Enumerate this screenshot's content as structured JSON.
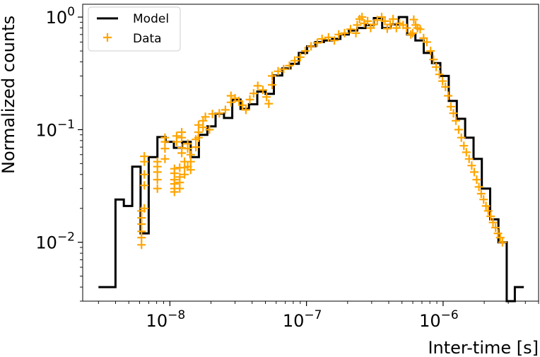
{
  "chart_data": {
    "type": "line",
    "xlabel": "Inter-time [s]",
    "ylabel": "Normalized counts",
    "xscale": "log",
    "yscale": "log",
    "xlim": [
      2.3e-09,
      5e-06
    ],
    "ylim": [
      0.003,
      1.3
    ],
    "x_ticks": [
      {
        "value": 1e-08,
        "base": "10",
        "exp": "−8"
      },
      {
        "value": 1e-07,
        "base": "10",
        "exp": "−7"
      },
      {
        "value": 1e-06,
        "base": "10",
        "exp": "−6"
      }
    ],
    "y_ticks": [
      {
        "value": 1,
        "base": "10",
        "exp": "0"
      },
      {
        "value": 0.1,
        "base": "10",
        "exp": "−1"
      },
      {
        "value": 0.01,
        "base": "10",
        "exp": "−2"
      }
    ],
    "legend": {
      "position": "top-left",
      "entries": [
        {
          "label": "Model",
          "style": "line"
        },
        {
          "label": "Data",
          "style": "plus"
        }
      ]
    },
    "colors": {
      "model": "#000000",
      "data": "#ffa500"
    },
    "series": [
      {
        "name": "Model",
        "kind": "step",
        "points": [
          [
            3e-09,
            0.004
          ],
          [
            4e-09,
            0.004
          ],
          [
            4e-09,
            0.024
          ],
          [
            4.6e-09,
            0.024
          ],
          [
            4.6e-09,
            0.021
          ],
          [
            5.3e-09,
            0.021
          ],
          [
            5.3e-09,
            0.047
          ],
          [
            6.1e-09,
            0.047
          ],
          [
            6.1e-09,
            0.012
          ],
          [
            7e-09,
            0.012
          ],
          [
            7e-09,
            0.057
          ],
          [
            8.1e-09,
            0.057
          ],
          [
            8.1e-09,
            0.086
          ],
          [
            9.3e-09,
            0.086
          ],
          [
            9.3e-09,
            0.078
          ],
          [
            1.07e-08,
            0.078
          ],
          [
            1.07e-08,
            0.069
          ],
          [
            1.23e-08,
            0.069
          ],
          [
            1.23e-08,
            0.078
          ],
          [
            1.42e-08,
            0.078
          ],
          [
            1.42e-08,
            0.057
          ],
          [
            1.63e-08,
            0.057
          ],
          [
            1.63e-08,
            0.09
          ],
          [
            1.88e-08,
            0.09
          ],
          [
            1.88e-08,
            0.107
          ],
          [
            2.16e-08,
            0.107
          ],
          [
            2.16e-08,
            0.139
          ],
          [
            2.49e-08,
            0.139
          ],
          [
            2.49e-08,
            0.127
          ],
          [
            2.86e-08,
            0.127
          ],
          [
            2.86e-08,
            0.185
          ],
          [
            3.29e-08,
            0.185
          ],
          [
            3.29e-08,
            0.153
          ],
          [
            3.79e-08,
            0.153
          ],
          [
            3.79e-08,
            0.168
          ],
          [
            4.36e-08,
            0.168
          ],
          [
            4.36e-08,
            0.218
          ],
          [
            5.02e-08,
            0.218
          ],
          [
            5.02e-08,
            0.208
          ],
          [
            5.77e-08,
            0.208
          ],
          [
            5.77e-08,
            0.303
          ],
          [
            6.64e-08,
            0.303
          ],
          [
            6.64e-08,
            0.35
          ],
          [
            7.64e-08,
            0.35
          ],
          [
            7.64e-08,
            0.385
          ],
          [
            8.79e-08,
            0.385
          ],
          [
            8.79e-08,
            0.48
          ],
          [
            1.01e-07,
            0.48
          ],
          [
            1.01e-07,
            0.55
          ],
          [
            1.16e-07,
            0.55
          ],
          [
            1.16e-07,
            0.6
          ],
          [
            1.34e-07,
            0.6
          ],
          [
            1.34e-07,
            0.62
          ],
          [
            1.54e-07,
            0.62
          ],
          [
            1.54e-07,
            0.64
          ],
          [
            1.77e-07,
            0.64
          ],
          [
            1.77e-07,
            0.7
          ],
          [
            2.04e-07,
            0.7
          ],
          [
            2.04e-07,
            0.76
          ],
          [
            2.35e-07,
            0.76
          ],
          [
            2.35e-07,
            0.8
          ],
          [
            2.7e-07,
            0.8
          ],
          [
            2.7e-07,
            0.85
          ],
          [
            3.11e-07,
            0.85
          ],
          [
            3.11e-07,
            0.98
          ],
          [
            3.58e-07,
            0.98
          ],
          [
            3.58e-07,
            0.8
          ],
          [
            4.12e-07,
            0.8
          ],
          [
            4.12e-07,
            0.86
          ],
          [
            4.74e-07,
            0.86
          ],
          [
            4.74e-07,
            1.0
          ],
          [
            5.45e-07,
            1.0
          ],
          [
            5.45e-07,
            0.7
          ],
          [
            6.27e-07,
            0.7
          ],
          [
            6.27e-07,
            0.62
          ],
          [
            7.21e-07,
            0.62
          ],
          [
            7.21e-07,
            0.48
          ],
          [
            8.29e-07,
            0.48
          ],
          [
            8.29e-07,
            0.39
          ],
          [
            9.54e-07,
            0.39
          ],
          [
            9.54e-07,
            0.3
          ],
          [
            1.1e-06,
            0.3
          ],
          [
            1.1e-06,
            0.18
          ],
          [
            1.26e-06,
            0.18
          ],
          [
            1.26e-06,
            0.125
          ],
          [
            1.45e-06,
            0.125
          ],
          [
            1.45e-06,
            0.085
          ],
          [
            1.67e-06,
            0.085
          ],
          [
            1.67e-06,
            0.055
          ],
          [
            1.92e-06,
            0.055
          ],
          [
            1.92e-06,
            0.03
          ],
          [
            2.21e-06,
            0.03
          ],
          [
            2.21e-06,
            0.016
          ],
          [
            2.54e-06,
            0.016
          ],
          [
            2.54e-06,
            0.01
          ],
          [
            2.92e-06,
            0.01
          ],
          [
            2.92e-06,
            0.0025
          ],
          [
            3.35e-06,
            0.0025
          ],
          [
            3.35e-06,
            0.004
          ],
          [
            3.9e-06,
            0.004
          ]
        ]
      },
      {
        "name": "Data",
        "kind": "markers",
        "marker": "plus",
        "points": [
          [
            6.2e-09,
            0.0095
          ],
          [
            6.2e-09,
            0.011
          ],
          [
            6.2e-09,
            0.0125
          ],
          [
            6.2e-09,
            0.0145
          ],
          [
            6.2e-09,
            0.0165
          ],
          [
            6.2e-09,
            0.019
          ],
          [
            6.5e-09,
            0.02
          ],
          [
            6.5e-09,
            0.032
          ],
          [
            6.5e-09,
            0.04
          ],
          [
            6.5e-09,
            0.052
          ],
          [
            6.5e-09,
            0.058
          ],
          [
            8.1e-09,
            0.03
          ],
          [
            8.1e-09,
            0.036
          ],
          [
            8.1e-09,
            0.042
          ],
          [
            8.1e-09,
            0.047
          ],
          [
            8.1e-09,
            0.052
          ],
          [
            9.2e-09,
            0.055
          ],
          [
            9.2e-09,
            0.068
          ],
          [
            9.2e-09,
            0.078
          ],
          [
            9.2e-09,
            0.085
          ],
          [
            1.08e-08,
            0.028
          ],
          [
            1.08e-08,
            0.03
          ],
          [
            1.08e-08,
            0.033
          ],
          [
            1.08e-08,
            0.036
          ],
          [
            1.08e-08,
            0.041
          ],
          [
            1.08e-08,
            0.045
          ],
          [
            1.12e-08,
            0.078
          ],
          [
            1.12e-08,
            0.088
          ],
          [
            1.18e-08,
            0.03
          ],
          [
            1.18e-08,
            0.034
          ],
          [
            1.18e-08,
            0.038
          ],
          [
            1.18e-08,
            0.046
          ],
          [
            1.22e-08,
            0.062
          ],
          [
            1.22e-08,
            0.069
          ],
          [
            1.22e-08,
            0.085
          ],
          [
            1.22e-08,
            0.095
          ],
          [
            1.28e-08,
            0.04
          ],
          [
            1.28e-08,
            0.046
          ],
          [
            1.28e-08,
            0.052
          ],
          [
            1.35e-08,
            0.047
          ],
          [
            1.35e-08,
            0.068
          ],
          [
            1.35e-08,
            0.075
          ],
          [
            1.42e-08,
            0.044
          ],
          [
            1.42e-08,
            0.052
          ],
          [
            1.42e-08,
            0.06
          ],
          [
            1.55e-08,
            0.07
          ],
          [
            1.55e-08,
            0.082
          ],
          [
            1.62e-08,
            0.085
          ],
          [
            1.62e-08,
            0.095
          ],
          [
            1.62e-08,
            0.11
          ],
          [
            1.75e-08,
            0.105
          ],
          [
            1.75e-08,
            0.12
          ],
          [
            1.82e-08,
            0.13
          ],
          [
            1.95e-08,
            0.1
          ],
          [
            2.05e-08,
            0.138
          ],
          [
            2.3e-08,
            0.14
          ],
          [
            2.55e-08,
            0.15
          ],
          [
            2.8e-08,
            0.175
          ],
          [
            2.8e-08,
            0.2
          ],
          [
            3e-08,
            0.19
          ],
          [
            3.2e-08,
            0.18
          ],
          [
            3.4e-08,
            0.165
          ],
          [
            3.6e-08,
            0.15
          ],
          [
            3.85e-08,
            0.185
          ],
          [
            4.1e-08,
            0.21
          ],
          [
            4.4e-08,
            0.245
          ],
          [
            4.8e-08,
            0.225
          ],
          [
            5.1e-08,
            0.195
          ],
          [
            5.3e-08,
            0.17
          ],
          [
            5.6e-08,
            0.25
          ],
          [
            5.6e-08,
            0.3
          ],
          [
            6.2e-08,
            0.33
          ],
          [
            6.8e-08,
            0.345
          ],
          [
            7.5e-08,
            0.37
          ],
          [
            8.2e-08,
            0.41
          ],
          [
            9e-08,
            0.44
          ],
          [
            9.8e-08,
            0.5
          ],
          [
            1.08e-07,
            0.55
          ],
          [
            1.2e-07,
            0.59
          ],
          [
            1.3e-07,
            0.64
          ],
          [
            1.45e-07,
            0.66
          ],
          [
            1.6e-07,
            0.62
          ],
          [
            1.72e-07,
            0.7
          ],
          [
            1.9e-07,
            0.72
          ],
          [
            2.1e-07,
            0.78
          ],
          [
            2.3e-07,
            0.72
          ],
          [
            2.35e-07,
            0.85
          ],
          [
            2.45e-07,
            0.96
          ],
          [
            2.55e-07,
            1.0
          ],
          [
            2.65e-07,
            0.88
          ],
          [
            2.8e-07,
            0.92
          ],
          [
            2.95e-07,
            0.8
          ],
          [
            3.1e-07,
            0.86
          ],
          [
            3.3e-07,
            0.94
          ],
          [
            3.55e-07,
            1.0
          ],
          [
            3.75e-07,
            0.92
          ],
          [
            3.9e-07,
            0.79
          ],
          [
            4.1e-07,
            0.86
          ],
          [
            4.3e-07,
            0.96
          ],
          [
            4.55e-07,
            0.8
          ],
          [
            4.8e-07,
            0.88
          ],
          [
            5.1e-07,
            0.85
          ],
          [
            5.4e-07,
            0.8
          ],
          [
            5.8e-07,
            0.7
          ],
          [
            6e-07,
            0.72
          ],
          [
            6.1e-07,
            0.95
          ],
          [
            6.3e-07,
            0.85
          ],
          [
            6.5e-07,
            0.8
          ],
          [
            6.8e-07,
            0.78
          ],
          [
            7.2e-07,
            0.65
          ],
          [
            7.6e-07,
            0.6
          ],
          [
            8.1e-07,
            0.5
          ],
          [
            8.5e-07,
            0.42
          ],
          [
            8.9e-07,
            0.36
          ],
          [
            9.4e-07,
            0.31
          ],
          [
            9.9e-07,
            0.27
          ],
          [
            1.04e-06,
            0.24
          ],
          [
            1.09e-06,
            0.2
          ],
          [
            1.14e-06,
            0.16
          ],
          [
            1.19e-06,
            0.14
          ],
          [
            1.24e-06,
            0.12
          ],
          [
            1.3e-06,
            0.1
          ],
          [
            1.36e-06,
            0.085
          ],
          [
            1.42e-06,
            0.072
          ],
          [
            1.48e-06,
            0.063
          ],
          [
            1.55e-06,
            0.055
          ],
          [
            1.62e-06,
            0.048
          ],
          [
            1.69e-06,
            0.042
          ],
          [
            1.76e-06,
            0.036
          ],
          [
            1.83e-06,
            0.031
          ],
          [
            1.9e-06,
            0.027
          ],
          [
            1.98e-06,
            0.024
          ],
          [
            2.06e-06,
            0.021
          ],
          [
            2.14e-06,
            0.019
          ],
          [
            2.23e-06,
            0.017
          ],
          [
            2.32e-06,
            0.015
          ],
          [
            2.42e-06,
            0.0135
          ],
          [
            2.52e-06,
            0.012
          ],
          [
            2.62e-06,
            0.011
          ],
          [
            2.72e-06,
            0.01
          ]
        ]
      }
    ]
  }
}
